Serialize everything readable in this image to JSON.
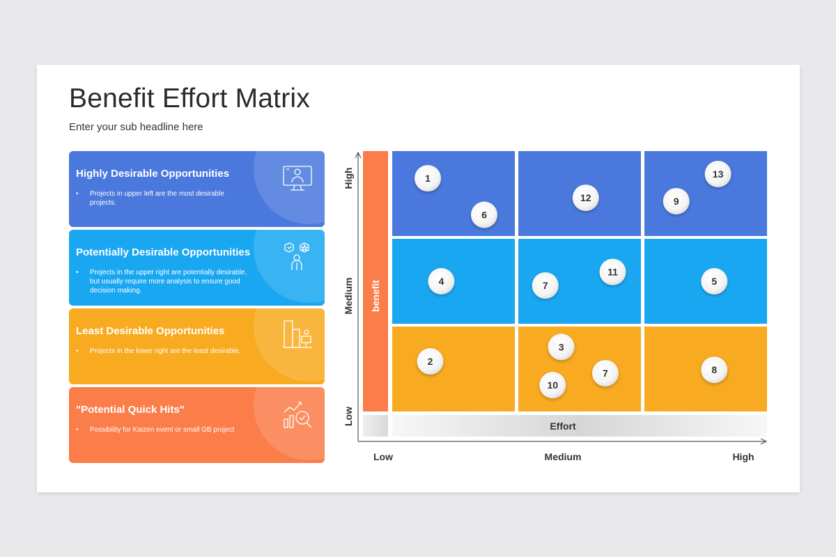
{
  "slide": {
    "title": "Benefit Effort Matrix",
    "subtitle": "Enter your sub headline here"
  },
  "cards": [
    {
      "title": "Highly Desirable Opportunities",
      "desc": "Projects in upper left are the most desirable projects.",
      "color": "#4a78dc",
      "icon": "monitor-user-icon"
    },
    {
      "title": "Potentially Desirable Opportunities",
      "desc": "Projects in the upper right are potentially desirable, but usually require more analysis to ensure good decision making.",
      "color": "#1aa7f2",
      "icon": "person-ideas-icon"
    },
    {
      "title": "Least Desirable Opportunities",
      "desc": "Projects in the lower right are the least desirable.",
      "color": "#f8aa20",
      "icon": "building-desk-icon"
    },
    {
      "title": "\"Potential Quick Hits\"",
      "desc": "Possibility for Kaizen event or small GB project",
      "color": "#fb7d4a",
      "icon": "chart-magnifier-icon"
    }
  ],
  "chart_data": {
    "type": "scatter",
    "benefit_label": "benefit",
    "effort_label": "Effort",
    "y_ticks": [
      "Low",
      "Medium",
      "High"
    ],
    "x_ticks": [
      "Low",
      "Medium",
      "High"
    ],
    "row_colors": [
      "#4a78dc",
      "#1aa7f2",
      "#f8aa20"
    ],
    "benefit_bar_color": "#fb7d4a",
    "points": [
      {
        "label": "1",
        "col": 0,
        "row": 0,
        "fx": 0.29,
        "fy": 0.32
      },
      {
        "label": "6",
        "col": 0,
        "row": 0,
        "fx": 0.75,
        "fy": 0.75
      },
      {
        "label": "12",
        "col": 1,
        "row": 0,
        "fx": 0.55,
        "fy": 0.55
      },
      {
        "label": "13",
        "col": 2,
        "row": 0,
        "fx": 0.6,
        "fy": 0.27
      },
      {
        "label": "9",
        "col": 2,
        "row": 0,
        "fx": 0.26,
        "fy": 0.59
      },
      {
        "label": "4",
        "col": 0,
        "row": 1,
        "fx": 0.4,
        "fy": 0.5
      },
      {
        "label": "7",
        "col": 1,
        "row": 1,
        "fx": 0.22,
        "fy": 0.55
      },
      {
        "label": "11",
        "col": 1,
        "row": 1,
        "fx": 0.77,
        "fy": 0.39
      },
      {
        "label": "5",
        "col": 2,
        "row": 1,
        "fx": 0.57,
        "fy": 0.5
      },
      {
        "label": "2",
        "col": 0,
        "row": 2,
        "fx": 0.31,
        "fy": 0.41
      },
      {
        "label": "3",
        "col": 1,
        "row": 2,
        "fx": 0.35,
        "fy": 0.24
      },
      {
        "label": "7",
        "col": 1,
        "row": 2,
        "fx": 0.71,
        "fy": 0.55
      },
      {
        "label": "10",
        "col": 1,
        "row": 2,
        "fx": 0.28,
        "fy": 0.69
      },
      {
        "label": "8",
        "col": 2,
        "row": 2,
        "fx": 0.57,
        "fy": 0.51
      }
    ]
  }
}
